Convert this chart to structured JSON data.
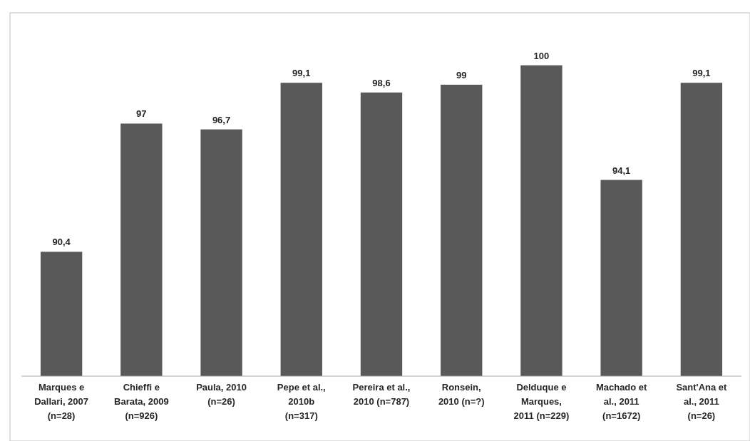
{
  "chart_data": {
    "type": "bar",
    "categories": [
      "Marques e\nDallari, 2007\n(n=28)",
      "Chieffi e\nBarata, 2009\n(n=926)",
      "Paula, 2010\n(n=26)",
      "Pepe et al.,\n2010b\n(n=317)",
      "Pereira et al.,\n2010 (n=787)",
      "Ronsein,\n2010 (n=?)",
      "Delduque e\nMarques,\n2011 (n=229)",
      "Machado et\nal., 2011\n(n=1672)",
      "Sant'Ana et\nal., 2011\n(n=26)"
    ],
    "values": [
      90.4,
      97,
      96.7,
      99.1,
      98.6,
      99,
      100,
      94.1,
      99.1
    ],
    "value_labels": [
      "90,4",
      "97",
      "96,7",
      "99,1",
      "98,6",
      "99",
      "100",
      "94,1",
      "99,1"
    ],
    "color": "#595959",
    "ylim": [
      84,
      102.7
    ],
    "tick_labels": "x"
  }
}
